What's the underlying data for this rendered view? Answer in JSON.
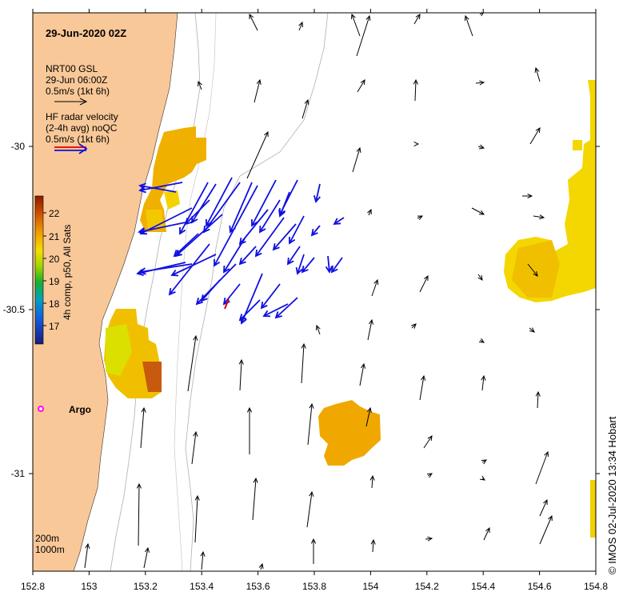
{
  "map": {
    "title": "29-Jun-2020 02Z",
    "x_ticks": [
      "152.8",
      "153",
      "153.2",
      "153.4",
      "153.6",
      "153.8",
      "154",
      "154.2",
      "154.4",
      "154.6",
      "154.8"
    ],
    "y_ticks": [
      "-30",
      "-30.5",
      "-31"
    ],
    "legend": {
      "model": [
        "NRT00 GSL",
        "29-Jun 06:00Z",
        "0.5m/s (1kt 6h)"
      ],
      "radar": [
        "HF radar velocity",
        "(2-4h avg) noQC",
        "0.5m/s (1kt 6h)"
      ]
    },
    "colorbar": {
      "label": "4h comp, p50, All Sats",
      "ticks": [
        "22",
        "21",
        "20",
        "19",
        "18",
        "17"
      ]
    },
    "argo_label": "Argo",
    "bathy_labels": [
      "200m",
      "1000m"
    ],
    "credit": "© IMOS 02-Jul-2020 13:34 Hobart",
    "colors": {
      "land": "#f9c898",
      "model_arrow": "#000000",
      "radar_arrow": "#0000e6",
      "argo_marker": "#ff00ff",
      "sst_warm": "#f0a000",
      "sst_yellow": "#f4e000",
      "sst_dark": "#d05000"
    }
  }
}
